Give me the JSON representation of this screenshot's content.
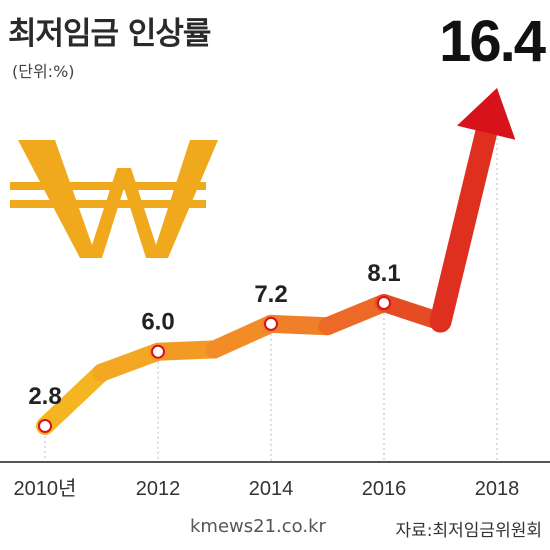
{
  "title": "최저임금 인상률",
  "unit": "(단위:%)",
  "highlight_value": "16.4",
  "source": "자료:최저임금위원회",
  "watermark": "kmews21.co.kr",
  "icon": "won-sign-icon",
  "colors": {
    "line_start": "#f5b421",
    "line_mid": "#f07a2a",
    "line_end": "#d8121b",
    "won": "#f0a81c",
    "marker": "#d8121b"
  },
  "chart_data": {
    "type": "line",
    "title": "최저임금 인상률",
    "unit": "%",
    "x": [
      2010,
      2011,
      2012,
      2013,
      2014,
      2015,
      2016,
      2017,
      2018
    ],
    "values": [
      2.8,
      5.1,
      6.0,
      6.1,
      7.2,
      7.1,
      8.1,
      7.3,
      16.4
    ],
    "labeled_points": [
      {
        "x": 2010,
        "label": "2.8"
      },
      {
        "x": 2012,
        "label": "6.0"
      },
      {
        "x": 2014,
        "label": "7.2"
      },
      {
        "x": 2016,
        "label": "8.1"
      },
      {
        "x": 2018,
        "label": "16.4"
      }
    ],
    "xticks": [
      "2010년",
      "2012",
      "2014",
      "2016",
      "2018"
    ],
    "ylim": [
      0,
      18
    ],
    "grid": "vertical-at-ticks"
  }
}
